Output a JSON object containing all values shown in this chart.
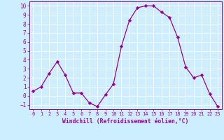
{
  "x": [
    0,
    1,
    2,
    3,
    4,
    5,
    6,
    7,
    8,
    9,
    10,
    11,
    12,
    13,
    14,
    15,
    16,
    17,
    18,
    19,
    20,
    21,
    22,
    23
  ],
  "y": [
    0.5,
    1.0,
    2.5,
    3.8,
    2.3,
    0.3,
    0.3,
    -0.8,
    -1.2,
    0.1,
    1.3,
    5.5,
    8.4,
    9.8,
    10.0,
    10.0,
    9.3,
    8.7,
    6.5,
    3.2,
    2.0,
    2.3,
    0.2,
    -1.2
  ],
  "line_color": "#990099",
  "marker": "D",
  "marker_size": 2.2,
  "bg_color": "#cceeff",
  "grid_color": "#ffffff",
  "xlabel": "Windchill (Refroidissement éolien,°C)",
  "xlabel_color": "#990099",
  "tick_color": "#990099",
  "ylim": [
    -1.5,
    10.5
  ],
  "xlim": [
    -0.5,
    23.5
  ],
  "yticks": [
    -1,
    0,
    1,
    2,
    3,
    4,
    5,
    6,
    7,
    8,
    9,
    10
  ],
  "xticks": [
    0,
    1,
    2,
    3,
    4,
    5,
    6,
    7,
    8,
    9,
    10,
    11,
    12,
    13,
    14,
    15,
    16,
    17,
    18,
    19,
    20,
    21,
    22,
    23
  ],
  "figsize": [
    3.2,
    2.0
  ],
  "dpi": 100
}
